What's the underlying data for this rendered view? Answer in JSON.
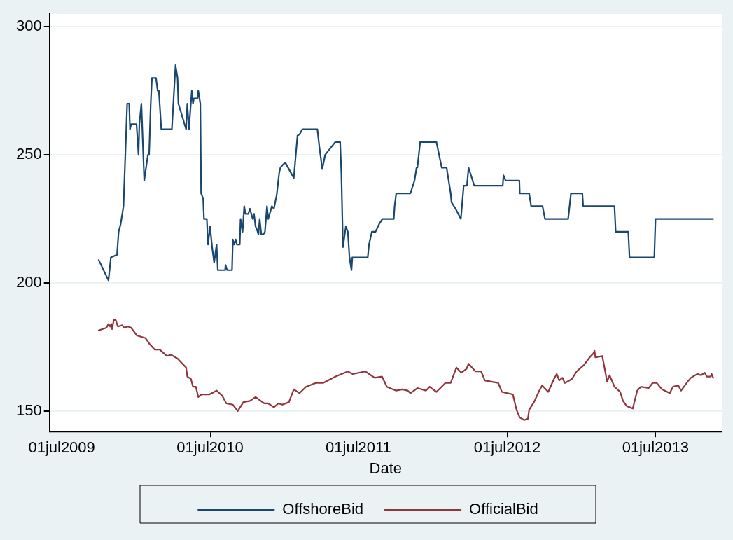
{
  "chart_data": {
    "type": "line",
    "xlabel": "Date",
    "xlim": [
      "2009-06-01",
      "2013-12-11"
    ],
    "xticks": [
      {
        "value": "2009-07-01",
        "label": "01jul2009"
      },
      {
        "value": "2010-07-01",
        "label": "01jul2010"
      },
      {
        "value": "2011-07-01",
        "label": "01jul2011"
      },
      {
        "value": "2012-07-01",
        "label": "01jul2012"
      },
      {
        "value": "2013-07-01",
        "label": "01jul2013"
      }
    ],
    "ylim": [
      142,
      305
    ],
    "yticks": [
      150,
      200,
      250,
      300
    ],
    "grid": "y",
    "legend": "bottom",
    "marker": "none",
    "line_style": "solid",
    "series": [
      {
        "name": "OffshoreBid",
        "color": "#1a476f",
        "x": [
          "2009-09-30",
          "2009-10-24",
          "2009-10-30",
          "2009-11-14",
          "2009-11-18",
          "2009-11-23",
          "2009-11-30",
          "2009-12-07",
          "2009-12-09",
          "2009-12-14",
          "2009-12-16",
          "2009-12-19",
          "2010-01-01",
          "2010-01-06",
          "2010-01-08",
          "2010-01-13",
          "2010-01-20",
          "2010-01-29",
          "2010-02-01",
          "2010-02-05",
          "2010-02-08",
          "2010-02-18",
          "2010-02-22",
          "2010-02-25",
          "2010-03-03",
          "2010-03-29",
          "2010-04-07",
          "2010-04-12",
          "2010-04-14",
          "2010-05-03",
          "2010-05-06",
          "2010-05-10",
          "2010-05-17",
          "2010-05-20",
          "2010-05-22",
          "2010-05-31",
          "2010-06-02",
          "2010-06-07",
          "2010-06-09",
          "2010-06-14",
          "2010-06-16",
          "2010-06-23",
          "2010-06-26",
          "2010-07-01",
          "2010-07-06",
          "2010-07-11",
          "2010-07-17",
          "2010-07-20",
          "2010-08-07",
          "2010-08-08",
          "2010-08-12",
          "2010-08-24",
          "2010-08-26",
          "2010-08-29",
          "2010-09-02",
          "2010-09-05",
          "2010-09-12",
          "2010-09-14",
          "2010-09-19",
          "2010-09-23",
          "2010-09-26",
          "2010-10-03",
          "2010-10-07",
          "2010-10-14",
          "2010-10-17",
          "2010-10-21",
          "2010-10-24",
          "2010-10-28",
          "2010-10-31",
          "2010-11-04",
          "2010-11-09",
          "2010-11-13",
          "2010-11-18",
          "2010-11-21",
          "2010-11-30",
          "2010-12-05",
          "2010-12-12",
          "2010-12-18",
          "2010-12-21",
          "2010-12-26",
          "2011-01-02",
          "2011-01-23",
          "2011-02-01",
          "2011-02-06",
          "2011-02-13",
          "2011-03-22",
          "2011-03-27",
          "2011-04-03",
          "2011-04-07",
          "2011-04-10",
          "2011-05-05",
          "2011-05-17",
          "2011-05-20",
          "2011-05-24",
          "2011-05-31",
          "2011-06-05",
          "2011-06-09",
          "2011-06-14",
          "2011-06-16",
          "2011-07-24",
          "2011-07-27",
          "2011-08-03",
          "2011-08-12",
          "2011-08-21",
          "2011-08-29",
          "2011-09-26",
          "2011-09-28",
          "2011-10-02",
          "2011-11-06",
          "2011-11-16",
          "2011-11-21",
          "2011-11-23",
          "2011-11-30",
          "2012-01-09",
          "2012-01-22",
          "2012-02-03",
          "2012-02-13",
          "2012-02-15",
          "2012-02-25",
          "2012-03-09",
          "2012-03-16",
          "2012-03-24",
          "2012-03-28",
          "2012-04-11",
          "2012-06-20",
          "2012-06-22",
          "2012-06-27",
          "2012-07-31",
          "2012-08-01",
          "2012-08-24",
          "2012-08-29",
          "2012-09-26",
          "2012-10-02",
          "2012-11-28",
          "2012-12-05",
          "2013-01-02",
          "2013-01-04",
          "2013-03-22",
          "2013-03-25",
          "2013-04-25",
          "2013-04-28",
          "2013-06-28",
          "2013-07-01",
          "2013-11-20"
        ],
        "values": [
          209,
          201,
          210,
          211,
          220,
          223,
          230,
          261,
          270,
          270,
          260,
          262,
          262,
          250,
          262,
          270,
          240,
          250,
          250,
          270,
          280,
          280,
          275,
          275,
          260,
          260,
          285,
          280,
          270,
          260,
          270,
          260,
          275,
          270,
          272,
          272,
          275,
          270,
          235,
          233,
          225,
          225,
          215,
          222,
          214,
          208,
          215,
          205,
          205,
          207,
          205,
          205,
          217,
          215,
          217,
          215,
          215,
          225,
          220,
          230,
          227,
          227,
          229,
          225,
          227,
          222,
          221,
          219,
          225,
          219,
          219,
          220,
          230,
          225,
          230,
          229,
          234.5,
          243,
          245,
          246,
          247,
          241,
          257.5,
          258,
          260,
          260,
          253,
          244.5,
          247.5,
          250,
          255,
          255,
          243,
          214,
          222,
          220,
          210,
          205,
          210,
          210,
          215,
          220,
          220,
          223,
          225,
          225,
          230,
          235,
          235,
          240,
          245,
          245,
          255,
          255,
          245,
          245,
          235,
          231.5,
          229,
          225,
          238,
          238,
          245,
          238,
          238,
          242,
          240,
          240,
          235,
          235,
          230,
          230,
          225,
          225,
          235,
          235,
          230,
          230,
          220,
          220,
          210,
          210,
          225,
          225
        ]
      },
      {
        "name": "OfficialBid",
        "color": "#90353b",
        "x": [
          "2009-09-30",
          "2009-10-19",
          "2009-10-24",
          "2009-10-28",
          "2009-10-31",
          "2009-11-02",
          "2009-11-06",
          "2009-11-11",
          "2009-11-16",
          "2009-11-27",
          "2009-12-02",
          "2009-12-11",
          "2009-12-19",
          "2010-01-02",
          "2010-01-23",
          "2010-02-03",
          "2010-02-15",
          "2010-02-27",
          "2010-03-17",
          "2010-03-27",
          "2010-04-12",
          "2010-05-03",
          "2010-05-06",
          "2010-05-15",
          "2010-05-20",
          "2010-05-27",
          "2010-06-02",
          "2010-06-10",
          "2010-06-29",
          "2010-07-17",
          "2010-07-31",
          "2010-08-10",
          "2010-08-26",
          "2010-09-07",
          "2010-09-21",
          "2010-10-07",
          "2010-10-21",
          "2010-11-11",
          "2010-11-21",
          "2010-12-05",
          "2010-12-16",
          "2010-12-26",
          "2011-01-11",
          "2011-01-23",
          "2011-02-06",
          "2011-02-22",
          "2011-03-18",
          "2011-04-05",
          "2011-05-06",
          "2011-06-05",
          "2011-06-17",
          "2011-07-18",
          "2011-08-10",
          "2011-08-28",
          "2011-09-09",
          "2011-10-02",
          "2011-10-17",
          "2011-10-30",
          "2011-11-06",
          "2011-11-23",
          "2011-12-14",
          "2011-12-23",
          "2012-01-09",
          "2012-01-31",
          "2012-02-13",
          "2012-02-27",
          "2012-03-10",
          "2012-03-23",
          "2012-03-28",
          "2012-04-14",
          "2012-04-28",
          "2012-05-07",
          "2012-05-23",
          "2012-06-09",
          "2012-06-18",
          "2012-07-15",
          "2012-07-24",
          "2012-08-01",
          "2012-08-12",
          "2012-08-21",
          "2012-08-24",
          "2012-09-05",
          "2012-09-18",
          "2012-09-25",
          "2012-10-10",
          "2012-10-24",
          "2012-10-31",
          "2012-11-06",
          "2012-11-14",
          "2012-11-20",
          "2012-12-07",
          "2012-12-19",
          "2013-01-06",
          "2013-01-20",
          "2013-01-29",
          "2013-02-01",
          "2013-02-03",
          "2013-02-20",
          "2013-03-04",
          "2013-03-10",
          "2013-03-22",
          "2013-04-05",
          "2013-04-12",
          "2013-04-21",
          "2013-05-06",
          "2013-05-17",
          "2013-05-26",
          "2013-06-14",
          "2013-06-24",
          "2013-07-04",
          "2013-07-17",
          "2013-08-05",
          "2013-08-13",
          "2013-08-26",
          "2013-09-02",
          "2013-09-18",
          "2013-09-26",
          "2013-10-12",
          "2013-10-21",
          "2013-10-30",
          "2013-11-04",
          "2013-11-14",
          "2013-11-16",
          "2013-11-20"
        ],
        "values": [
          181.5,
          182.5,
          184,
          183,
          184,
          182,
          185.5,
          185.5,
          183,
          183.5,
          182.5,
          183,
          182.5,
          179.5,
          178.5,
          176,
          174,
          174,
          171.5,
          172,
          170.5,
          167,
          163.5,
          162.5,
          159.5,
          159.5,
          155.5,
          156.5,
          156.5,
          158,
          156,
          153,
          152.5,
          150,
          153.5,
          154,
          155.5,
          153,
          153,
          151.5,
          153,
          152.5,
          153.5,
          158.5,
          157,
          159.5,
          161,
          161,
          163.5,
          165.5,
          164.5,
          165.5,
          163,
          163.5,
          159.5,
          158,
          158.5,
          158,
          157,
          159,
          158,
          159.5,
          157.5,
          161,
          161,
          167,
          165,
          166.5,
          168.5,
          165.5,
          165.5,
          162,
          161.5,
          161,
          157.5,
          156.5,
          150.5,
          147.5,
          146.5,
          147,
          150.5,
          153.5,
          158,
          160,
          157.5,
          162.5,
          164.5,
          162,
          163,
          161,
          162.5,
          165.5,
          168,
          171,
          172.5,
          173.5,
          171,
          171.5,
          161.5,
          164,
          159.5,
          157.5,
          154,
          152,
          151,
          158,
          159.5,
          159,
          161,
          161,
          158.5,
          157,
          159.5,
          160,
          158,
          161.5,
          163,
          164.5,
          164,
          165,
          163.5,
          163.5,
          164.5,
          163
        ]
      }
    ]
  }
}
